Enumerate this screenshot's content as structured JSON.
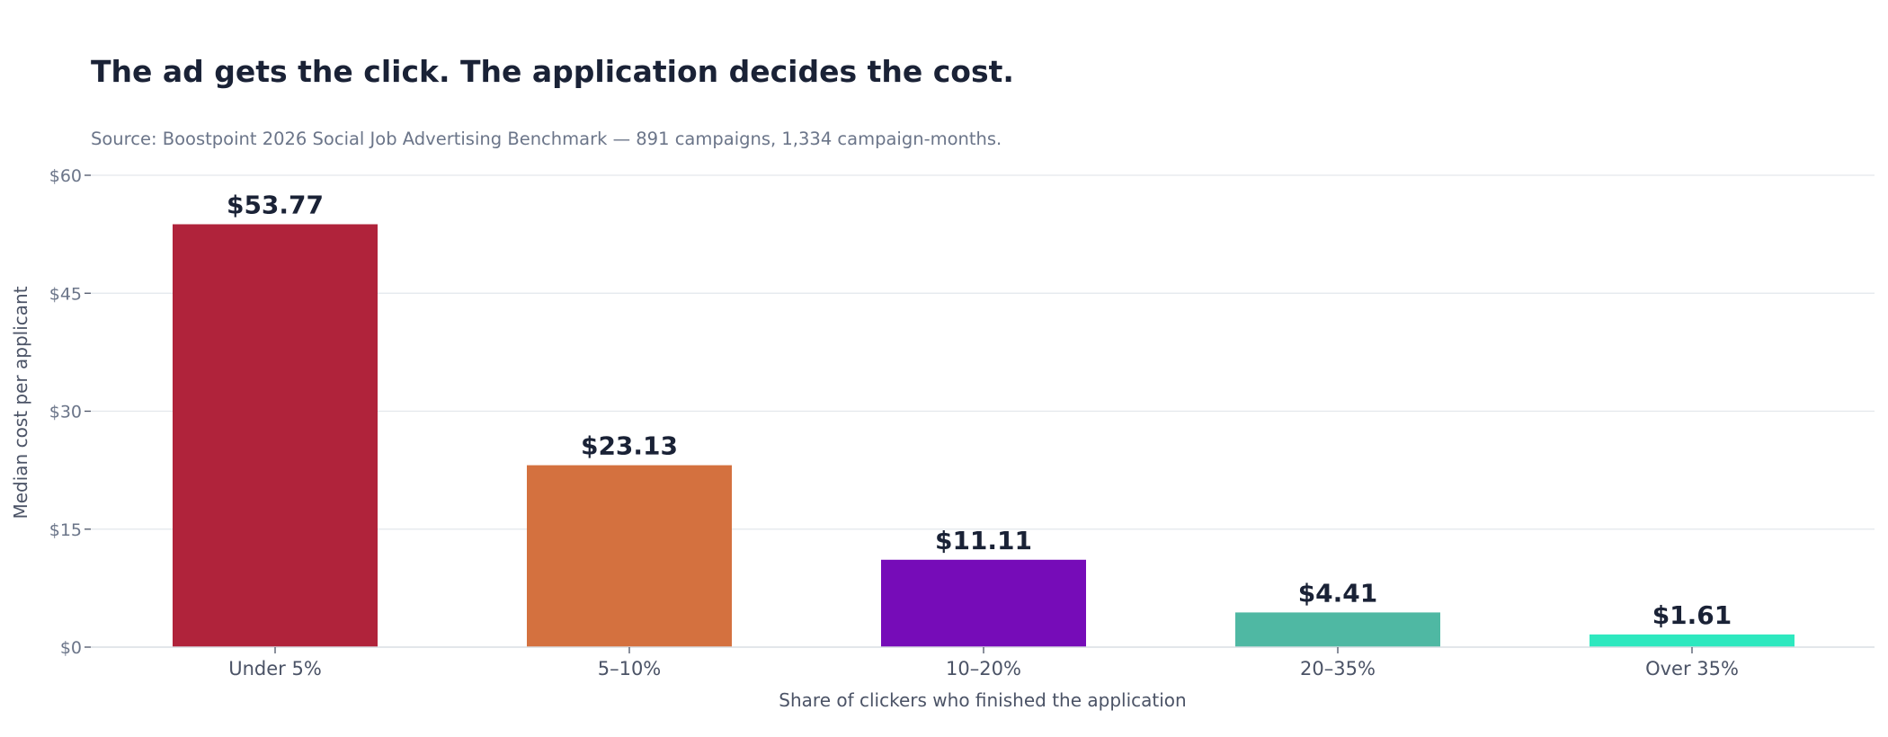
{
  "chart_data": {
    "type": "bar",
    "title": "The ad gets the click. The application decides the cost.",
    "subtitle": "Source: Boostpoint 2026 Social Job Advertising Benchmark — 891 campaigns, 1,334 campaign-months.",
    "xlabel": "Share of clickers who finished the application",
    "ylabel": "Median cost per applicant",
    "categories": [
      "Under 5%",
      "5–10%",
      "10–20%",
      "20–35%",
      "Over 35%"
    ],
    "values": [
      53.77,
      23.13,
      11.11,
      4.41,
      1.61
    ],
    "value_labels": [
      "$53.77",
      "$23.13",
      "$11.11",
      "$4.41",
      "$1.61"
    ],
    "colors": [
      "#b0233b",
      "#d4713f",
      "#760cb8",
      "#4fb8a3",
      "#2ee8bf"
    ],
    "ylim": [
      0,
      60
    ],
    "yticks": [
      0,
      15,
      30,
      45,
      60
    ],
    "ytick_labels": [
      "$0",
      "$15",
      "$30",
      "$45",
      "$60"
    ],
    "grid": true,
    "legend": "none"
  }
}
